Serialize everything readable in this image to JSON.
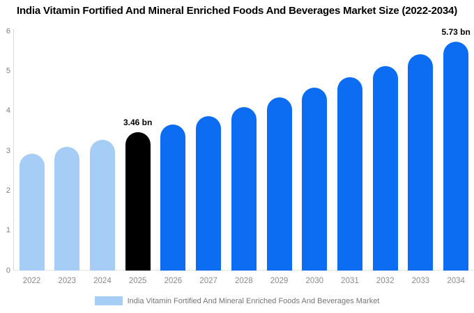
{
  "title": "India Vitamin Fortified And Mineral Enriched Foods And Beverages Market Size (2022-2034)",
  "legend": {
    "label": "India Vitamin Fortified And Mineral Enriched Foods And Beverages Market",
    "swatch_color": "#a5cdf6"
  },
  "chart_data": {
    "type": "bar",
    "title": "India Vitamin Fortified And Mineral Enriched Foods And Beverages Market Size (2022-2034)",
    "xlabel": "",
    "ylabel": "",
    "categories": [
      "2022",
      "2023",
      "2024",
      "2025",
      "2026",
      "2027",
      "2028",
      "2029",
      "2030",
      "2031",
      "2032",
      "2033",
      "2034"
    ],
    "values": [
      2.92,
      3.09,
      3.27,
      3.46,
      3.66,
      3.87,
      4.09,
      4.33,
      4.58,
      4.84,
      5.12,
      5.42,
      5.73
    ],
    "bar_types": [
      "historical",
      "historical",
      "historical",
      "current",
      "forecast",
      "forecast",
      "forecast",
      "forecast",
      "forecast",
      "forecast",
      "forecast",
      "forecast",
      "forecast"
    ],
    "annotations": [
      {
        "category": "2025",
        "text": "3.46 bn"
      },
      {
        "category": "2034",
        "text": "5.73 bn"
      }
    ],
    "yticks": [
      0,
      1,
      2,
      3,
      4,
      5,
      6
    ],
    "ylim": [
      0,
      6
    ],
    "grid": false,
    "legend_position": "bottom",
    "legend_entries": [
      "India Vitamin Fortified And Mineral Enriched Foods And Beverages Market"
    ],
    "colors": {
      "historical": "#a5cdf6",
      "current": "#000000",
      "forecast": "#0c6cf2",
      "axis_line": "#d9d9d9",
      "baseline": "#e4e4e4",
      "tick_text": "#7d7d7d",
      "title_text": "#000000",
      "annotation_text": "#000000"
    }
  }
}
